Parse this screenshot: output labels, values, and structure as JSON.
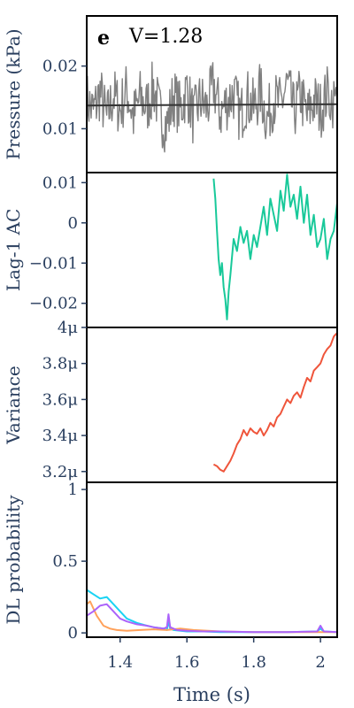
{
  "chart_data": [
    {
      "type": "line",
      "panel_label": "e",
      "annotation": "V=1.28",
      "ylabel": "Pressure (kPa)",
      "xlabel": "",
      "xlim": [
        1.3,
        2.05
      ],
      "ylim": [
        0.003,
        0.028
      ],
      "yticks": [
        "0.01",
        "0.02"
      ],
      "ytick_values": [
        0.01,
        0.02
      ],
      "series": [
        {
          "color": "#808080",
          "noisy": true,
          "x": [
            1.3,
            1.32,
            1.34,
            1.36,
            1.38,
            1.4,
            1.42,
            1.44,
            1.46,
            1.48,
            1.5,
            1.52,
            1.54,
            1.56,
            1.58,
            1.6,
            1.62,
            1.64,
            1.66,
            1.68,
            1.7,
            1.72,
            1.74,
            1.76,
            1.78,
            1.8,
            1.82,
            1.84,
            1.86,
            1.88,
            1.9,
            1.92,
            1.94,
            1.96,
            1.98,
            2.0,
            2.02,
            2.05
          ],
          "y": [
            0.0152,
            0.0118,
            0.0175,
            0.0095,
            0.0168,
            0.0124,
            0.0182,
            0.0101,
            0.0159,
            0.0132,
            0.0189,
            0.0109,
            0.0077,
            0.0166,
            0.0121,
            0.0185,
            0.0098,
            0.0154,
            0.0128,
            0.0196,
            0.0112,
            0.0147,
            0.0172,
            0.0105,
            0.0161,
            0.0127,
            0.0179,
            0.0094,
            0.0157,
            0.0135,
            0.0198,
            0.0116,
            0.0168,
            0.0102,
            0.0151,
            0.0125,
            0.0171,
            0.0142
          ]
        },
        {
          "color": "#333333",
          "noisy": false,
          "x": [
            1.3,
            2.05
          ],
          "y": [
            0.0137,
            0.0139
          ]
        }
      ]
    },
    {
      "type": "line",
      "ylabel": "Lag-1 AC",
      "xlabel": "",
      "xlim": [
        1.3,
        2.05
      ],
      "ylim": [
        -0.026,
        0.0125
      ],
      "yticks": [
        "0.01",
        "0",
        "−0.01",
        "−0.02"
      ],
      "ytick_values": [
        0.01,
        0,
        -0.01,
        -0.02
      ],
      "series": [
        {
          "color": "#19c99a",
          "noisy": false,
          "x": [
            1.68,
            1.685,
            1.69,
            1.695,
            1.7,
            1.705,
            1.71,
            1.715,
            1.72,
            1.725,
            1.73,
            1.74,
            1.75,
            1.76,
            1.77,
            1.78,
            1.79,
            1.8,
            1.81,
            1.82,
            1.83,
            1.84,
            1.85,
            1.86,
            1.87,
            1.88,
            1.89,
            1.9,
            1.91,
            1.92,
            1.93,
            1.94,
            1.95,
            1.96,
            1.97,
            1.98,
            1.99,
            2.0,
            2.01,
            2.02,
            2.03,
            2.04,
            2.05
          ],
          "y": [
            0.011,
            0.006,
            -0.002,
            -0.009,
            -0.013,
            -0.01,
            -0.016,
            -0.019,
            -0.024,
            -0.017,
            -0.013,
            -0.004,
            -0.007,
            -0.001,
            -0.005,
            -0.002,
            -0.009,
            -0.003,
            -0.006,
            -0.001,
            0.004,
            -0.003,
            0.006,
            0.002,
            -0.002,
            0.008,
            0.003,
            0.012,
            0.004,
            0.007,
            0.001,
            0.009,
            0.0,
            0.007,
            -0.003,
            0.002,
            -0.006,
            -0.004,
            0.001,
            -0.009,
            -0.004,
            -0.002,
            0.005
          ]
        }
      ]
    },
    {
      "type": "line",
      "ylabel": "Variance",
      "xlabel": "",
      "xlim": [
        1.3,
        2.05
      ],
      "ylim": [
        3.14,
        4.0
      ],
      "yticks": [
        "4μ",
        "3.8μ",
        "3.6μ",
        "3.4μ",
        "3.2μ"
      ],
      "ytick_values": [
        4.0,
        3.8,
        3.6,
        3.4,
        3.2
      ],
      "series": [
        {
          "color": "#ef553b",
          "noisy": false,
          "x": [
            1.68,
            1.69,
            1.7,
            1.71,
            1.72,
            1.73,
            1.74,
            1.75,
            1.76,
            1.77,
            1.78,
            1.79,
            1.8,
            1.81,
            1.82,
            1.83,
            1.84,
            1.85,
            1.86,
            1.87,
            1.88,
            1.89,
            1.9,
            1.91,
            1.92,
            1.93,
            1.94,
            1.95,
            1.96,
            1.97,
            1.98,
            1.99,
            2.0,
            2.01,
            2.02,
            2.03,
            2.04,
            2.05
          ],
          "y": [
            3.24,
            3.23,
            3.21,
            3.2,
            3.23,
            3.26,
            3.3,
            3.35,
            3.38,
            3.43,
            3.4,
            3.44,
            3.42,
            3.41,
            3.44,
            3.4,
            3.43,
            3.47,
            3.45,
            3.5,
            3.52,
            3.56,
            3.6,
            3.58,
            3.62,
            3.64,
            3.61,
            3.67,
            3.72,
            3.7,
            3.76,
            3.78,
            3.8,
            3.85,
            3.88,
            3.9,
            3.95,
            3.97
          ]
        }
      ]
    },
    {
      "type": "line",
      "ylabel": "DL probability",
      "xlabel": "Time (s)",
      "xlim": [
        1.3,
        2.05
      ],
      "ylim": [
        -0.03,
        1.05
      ],
      "yticks": [
        "1",
        "0.5",
        "0"
      ],
      "ytick_values": [
        1,
        0.5,
        0
      ],
      "xticks": [
        "1.4",
        "1.6",
        "1.8",
        "2"
      ],
      "xtick_values": [
        1.4,
        1.6,
        1.8,
        2.0
      ],
      "series": [
        {
          "color": "#19d3f3",
          "noisy": false,
          "x": [
            1.3,
            1.32,
            1.34,
            1.36,
            1.38,
            1.4,
            1.42,
            1.45,
            1.48,
            1.5,
            1.53,
            1.54,
            1.545,
            1.55,
            1.56,
            1.6,
            1.65,
            1.7,
            1.8,
            1.9,
            1.99,
            2.0,
            2.01,
            2.05
          ],
          "y": [
            0.3,
            0.27,
            0.24,
            0.25,
            0.2,
            0.15,
            0.1,
            0.07,
            0.05,
            0.04,
            0.03,
            0.02,
            0.08,
            0.03,
            0.02,
            0.01,
            0.01,
            0.005,
            0.005,
            0.005,
            0.01,
            0.03,
            0.01,
            0.005
          ]
        },
        {
          "color": "#ffa15a",
          "noisy": false,
          "x": [
            1.3,
            1.31,
            1.33,
            1.35,
            1.37,
            1.39,
            1.42,
            1.46,
            1.5,
            1.54,
            1.58,
            1.62,
            1.7,
            1.8,
            1.9,
            2.05
          ],
          "y": [
            0.2,
            0.22,
            0.12,
            0.05,
            0.03,
            0.02,
            0.015,
            0.02,
            0.025,
            0.02,
            0.03,
            0.02,
            0.01,
            0.005,
            0.005,
            0.005
          ]
        },
        {
          "color": "#ab63fa",
          "noisy": false,
          "x": [
            1.3,
            1.32,
            1.34,
            1.36,
            1.38,
            1.4,
            1.42,
            1.45,
            1.48,
            1.5,
            1.53,
            1.54,
            1.545,
            1.55,
            1.57,
            1.6,
            1.65,
            1.7,
            1.8,
            1.9,
            1.99,
            2.0,
            2.01,
            2.05
          ],
          "y": [
            0.12,
            0.15,
            0.19,
            0.2,
            0.15,
            0.1,
            0.08,
            0.06,
            0.05,
            0.04,
            0.03,
            0.04,
            0.13,
            0.04,
            0.02,
            0.015,
            0.01,
            0.01,
            0.005,
            0.005,
            0.01,
            0.05,
            0.01,
            0.005
          ]
        }
      ]
    }
  ]
}
